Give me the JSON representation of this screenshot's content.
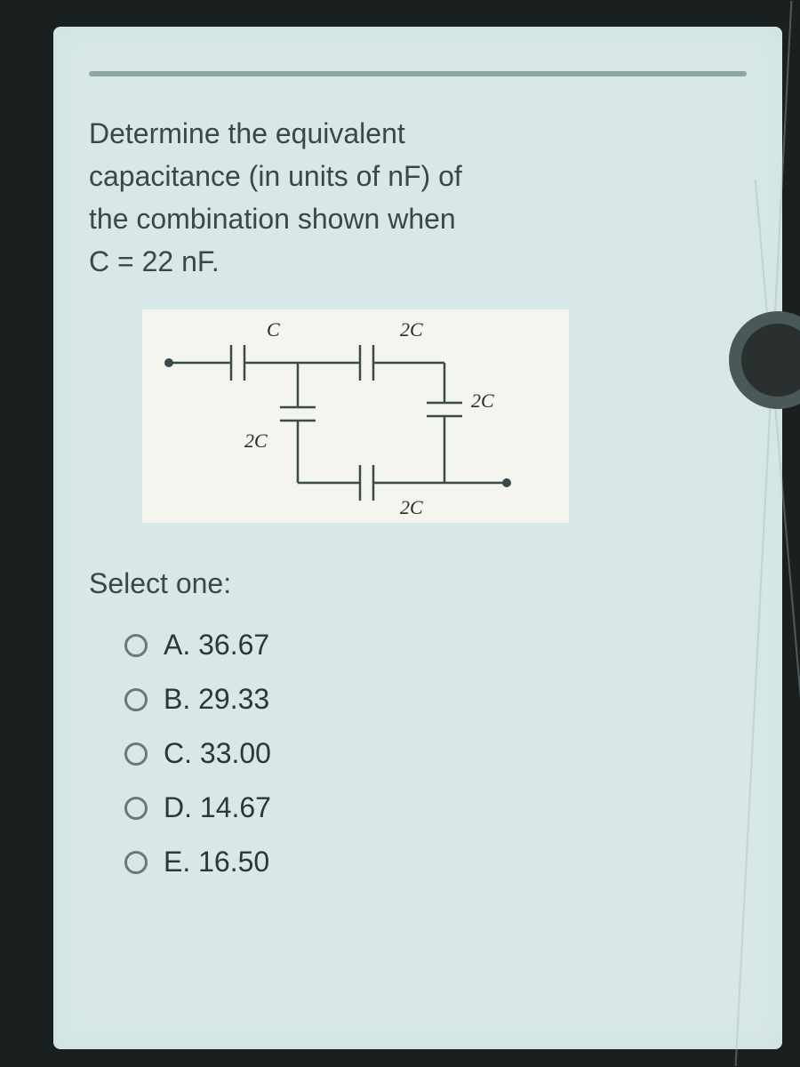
{
  "question": {
    "text_line1": "Determine the equivalent",
    "text_line2": "capacitance (in units of nF) of",
    "text_line3": "the combination shown when",
    "text_line4": "C = 22 nF."
  },
  "circuit": {
    "type": "circuit-diagram",
    "background_color": "#f5f5f0",
    "stroke_color": "#3a4a4a",
    "stroke_width": 2.5,
    "label_font": "Times New Roman italic",
    "label_fontsize": 22,
    "labels": {
      "c_top_left": "C",
      "c_top_right": "2C",
      "c_mid_left": "2C",
      "c_right": "2C",
      "c_bottom": "2C"
    }
  },
  "select_label": "Select one:",
  "options": [
    {
      "key": "A",
      "value": "36.67"
    },
    {
      "key": "B",
      "value": "29.33"
    },
    {
      "key": "C",
      "value": "33.00"
    },
    {
      "key": "D",
      "value": "14.67"
    },
    {
      "key": "E",
      "value": "16.50"
    }
  ],
  "colors": {
    "screen_bg": "#d8e8e8",
    "text": "#3a4848",
    "radio_border": "#6a7878",
    "frame": "#1a2020"
  }
}
